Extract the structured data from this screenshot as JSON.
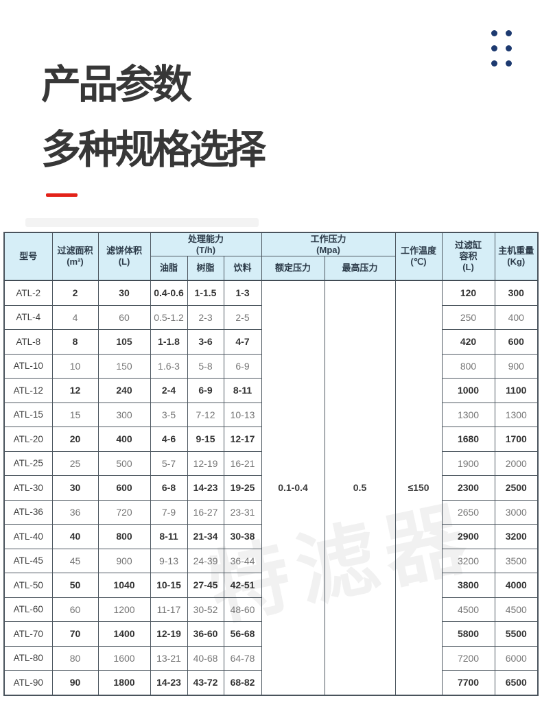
{
  "header": {
    "title_line1": "产品参数",
    "title_line2": "多种规格选择",
    "accent_color": "#e32219",
    "dots_color": "#1d3a70"
  },
  "watermark": {
    "text": "特滤器"
  },
  "table": {
    "header": {
      "model": "型号",
      "filter_area": [
        "过滤面积",
        "(m²)"
      ],
      "cake_volume": [
        "滤饼体积",
        "(L)"
      ],
      "capacity": [
        "处理能力",
        "(T/h)"
      ],
      "capacity_sub": {
        "oil": "油脂",
        "resin": "树脂",
        "beverage": "饮料"
      },
      "pressure": [
        "工作压力",
        "(Mpa)"
      ],
      "pressure_sub": {
        "rated": "额定压力",
        "max": "最高压力"
      },
      "temperature": [
        "工作温度",
        "(℃)"
      ],
      "tank_volume": [
        "过滤缸",
        "容积",
        "(L)"
      ],
      "weight": [
        "主机重量",
        "(Kg)"
      ]
    },
    "merged": {
      "rated_pressure": "0.1-0.4",
      "max_pressure": "0.5",
      "temperature": "≤150"
    },
    "rows": [
      {
        "model": "ATL-2",
        "area": "2",
        "cake": "30",
        "oil": "0.4-0.6",
        "resin": "1-1.5",
        "beverage": "1-3",
        "tank": "120",
        "weight": "300"
      },
      {
        "model": "ATL-4",
        "area": "4",
        "cake": "60",
        "oil": "0.5-1.2",
        "resin": "2-3",
        "beverage": "2-5",
        "tank": "250",
        "weight": "400"
      },
      {
        "model": "ATL-8",
        "area": "8",
        "cake": "105",
        "oil": "1-1.8",
        "resin": "3-6",
        "beverage": "4-7",
        "tank": "420",
        "weight": "600"
      },
      {
        "model": "ATL-10",
        "area": "10",
        "cake": "150",
        "oil": "1.6-3",
        "resin": "5-8",
        "beverage": "6-9",
        "tank": "800",
        "weight": "900"
      },
      {
        "model": "ATL-12",
        "area": "12",
        "cake": "240",
        "oil": "2-4",
        "resin": "6-9",
        "beverage": "8-11",
        "tank": "1000",
        "weight": "1100"
      },
      {
        "model": "ATL-15",
        "area": "15",
        "cake": "300",
        "oil": "3-5",
        "resin": "7-12",
        "beverage": "10-13",
        "tank": "1300",
        "weight": "1300"
      },
      {
        "model": "ATL-20",
        "area": "20",
        "cake": "400",
        "oil": "4-6",
        "resin": "9-15",
        "beverage": "12-17",
        "tank": "1680",
        "weight": "1700"
      },
      {
        "model": "ATL-25",
        "area": "25",
        "cake": "500",
        "oil": "5-7",
        "resin": "12-19",
        "beverage": "16-21",
        "tank": "1900",
        "weight": "2000"
      },
      {
        "model": "ATL-30",
        "area": "30",
        "cake": "600",
        "oil": "6-8",
        "resin": "14-23",
        "beverage": "19-25",
        "tank": "2300",
        "weight": "2500"
      },
      {
        "model": "ATL-36",
        "area": "36",
        "cake": "720",
        "oil": "7-9",
        "resin": "16-27",
        "beverage": "23-31",
        "tank": "2650",
        "weight": "3000"
      },
      {
        "model": "ATL-40",
        "area": "40",
        "cake": "800",
        "oil": "8-11",
        "resin": "21-34",
        "beverage": "30-38",
        "tank": "2900",
        "weight": "3200"
      },
      {
        "model": "ATL-45",
        "area": "45",
        "cake": "900",
        "oil": "9-13",
        "resin": "24-39",
        "beverage": "36-44",
        "tank": "3200",
        "weight": "3500"
      },
      {
        "model": "ATL-50",
        "area": "50",
        "cake": "1040",
        "oil": "10-15",
        "resin": "27-45",
        "beverage": "42-51",
        "tank": "3800",
        "weight": "4000"
      },
      {
        "model": "ATL-60",
        "area": "60",
        "cake": "1200",
        "oil": "11-17",
        "resin": "30-52",
        "beverage": "48-60",
        "tank": "4500",
        "weight": "4500"
      },
      {
        "model": "ATL-70",
        "area": "70",
        "cake": "1400",
        "oil": "12-19",
        "resin": "36-60",
        "beverage": "56-68",
        "tank": "5800",
        "weight": "5500"
      },
      {
        "model": "ATL-80",
        "area": "80",
        "cake": "1600",
        "oil": "13-21",
        "resin": "40-68",
        "beverage": "64-78",
        "tank": "7200",
        "weight": "6000"
      },
      {
        "model": "ATL-90",
        "area": "90",
        "cake": "1800",
        "oil": "14-23",
        "resin": "43-72",
        "beverage": "68-82",
        "tank": "7700",
        "weight": "6500"
      }
    ]
  }
}
